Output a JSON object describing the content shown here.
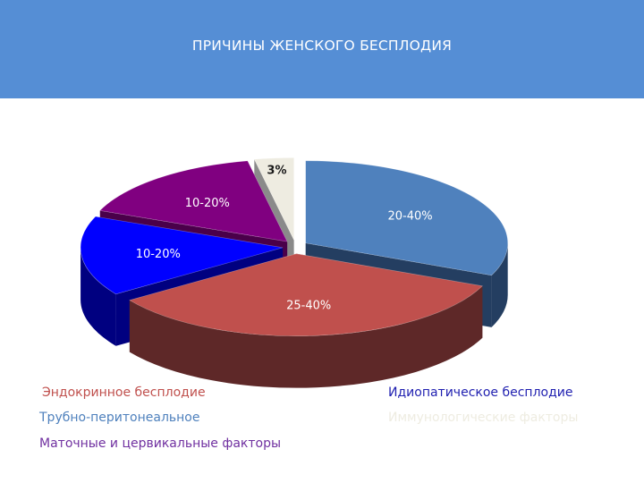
{
  "slide": {
    "title": "ПРИЧИНЫ ЖЕНСКОГО БЕСПЛОДИЯ",
    "header_color": "#558ed5"
  },
  "chart_data": {
    "type": "pie",
    "title": "ПРИЧИНЫ ЖЕНСКОГО БЕСПЛОДИЯ",
    "style": "3d-exploded",
    "slices": [
      {
        "label": "20-40%",
        "value": 30,
        "color": "#4f81bd",
        "side_color": "#243e61"
      },
      {
        "label": "25-40%",
        "value": 32.5,
        "color": "#c0504d",
        "side_color": "#5e2828"
      },
      {
        "label": "10-20%",
        "value": 15,
        "color": "#0000ff",
        "side_color": "#000080"
      },
      {
        "label": "10-20%",
        "value": 15,
        "color": "#800080",
        "side_color": "#4a004a"
      },
      {
        "label": "3%",
        "value": 3,
        "color": "#eeece1",
        "side_color": "#8a8a8a"
      }
    ]
  },
  "legend": {
    "left": [
      {
        "text": "Эндокринное бесплодие",
        "color": "#c0504d"
      },
      {
        "text": "Трубно-перитонеальное",
        "color": "#4f81bd"
      },
      {
        "text": "Маточные и цервикальные факторы",
        "color": "#7030a0"
      }
    ],
    "right": [
      {
        "text": "Идиопатическое бесплодие",
        "color": "#1f1fb0"
      },
      {
        "text": "Иммунологические факторы",
        "color": "#eeece1"
      }
    ]
  }
}
